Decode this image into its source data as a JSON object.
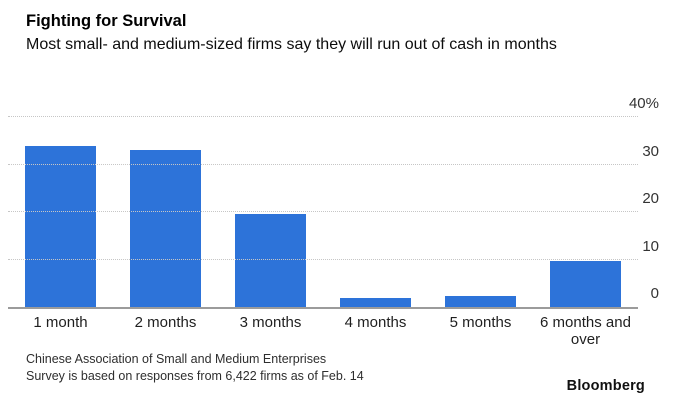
{
  "header": {
    "title": "Fighting for Survival",
    "subtitle": "Most small- and medium-sized firms say they will run out of cash in months"
  },
  "chart_data": {
    "type": "bar",
    "title": "Fighting for Survival",
    "subtitle": "Most small- and medium-sized firms say they will run out of cash in months",
    "categories": [
      "1 month",
      "2 months",
      "3 months",
      "4 months",
      "5 months",
      "6 months and over"
    ],
    "values": [
      34,
      33,
      19.5,
      1.8,
      2.4,
      9.7
    ],
    "xlabel": "",
    "ylabel": "",
    "ylim": [
      0,
      40
    ],
    "yticks": [
      {
        "label": "40%",
        "value": 40
      },
      {
        "label": "30",
        "value": 30
      },
      {
        "label": "20",
        "value": 20
      },
      {
        "label": "10",
        "value": 10
      },
      {
        "label": "0",
        "value": 0
      }
    ],
    "grid": "horizontal-dotted",
    "legend_position": "none",
    "bar_color": "#2d73d9",
    "baseline_color": "#9b9b9b"
  },
  "footer": {
    "source_line1": "Chinese Association of Small and Medium Enterprises",
    "source_line2": "Survey is based on responses from 6,422 firms as of Feb. 14",
    "brand": "Bloomberg"
  }
}
